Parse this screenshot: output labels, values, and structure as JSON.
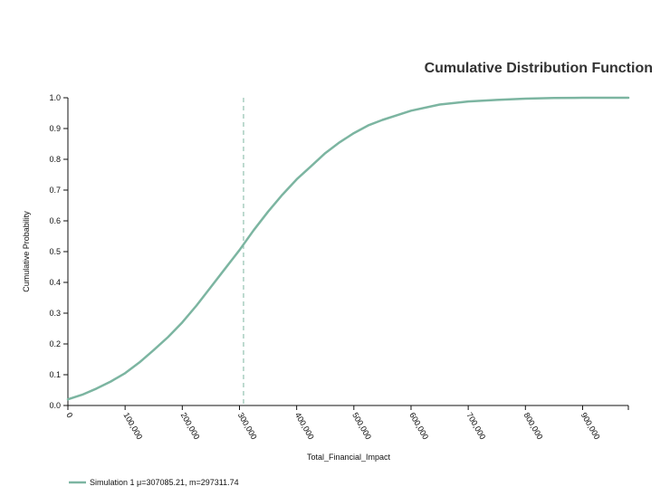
{
  "chart_data": {
    "type": "line",
    "title": "Cumulative Distribution Function",
    "xlabel": "Total_Financial_Impact",
    "ylabel": "Cumulative Probability",
    "xlim": [
      0,
      980000
    ],
    "ylim": [
      0,
      1.0
    ],
    "x_ticks": [
      0,
      100000,
      200000,
      300000,
      400000,
      500000,
      600000,
      700000,
      800000,
      900000
    ],
    "x_tick_labels": [
      "0",
      "100,000",
      "200,000",
      "300,000",
      "400,000",
      "500,000",
      "600,000",
      "700,000",
      "800,000",
      "900,000"
    ],
    "y_ticks": [
      0,
      0.1,
      0.2,
      0.3,
      0.4,
      0.5,
      0.6,
      0.7,
      0.8,
      0.9,
      1.0
    ],
    "y_tick_labels": [
      "0.0",
      "0.1",
      "0.2",
      "0.3",
      "0.4",
      "0.5",
      "0.6",
      "0.7",
      "0.8",
      "0.9",
      "1.0"
    ],
    "grid": false,
    "legend_position": "bottom-left",
    "mean_marker": {
      "x": 307085.21,
      "style": "dashed"
    },
    "series": [
      {
        "name": "Simulation 1 μ=307085.21, m=297311.74",
        "color": "#7cb5a1",
        "x": [
          0,
          25000,
          50000,
          75000,
          100000,
          125000,
          150000,
          175000,
          200000,
          225000,
          250000,
          275000,
          300000,
          325000,
          350000,
          375000,
          400000,
          425000,
          450000,
          475000,
          500000,
          525000,
          550000,
          600000,
          650000,
          700000,
          750000,
          800000,
          850000,
          900000,
          980000
        ],
        "y": [
          0.02,
          0.035,
          0.055,
          0.078,
          0.105,
          0.14,
          0.18,
          0.222,
          0.27,
          0.325,
          0.385,
          0.445,
          0.505,
          0.57,
          0.63,
          0.685,
          0.735,
          0.777,
          0.82,
          0.855,
          0.885,
          0.91,
          0.928,
          0.958,
          0.978,
          0.988,
          0.993,
          0.997,
          0.999,
          1.0,
          1.0
        ]
      }
    ]
  }
}
